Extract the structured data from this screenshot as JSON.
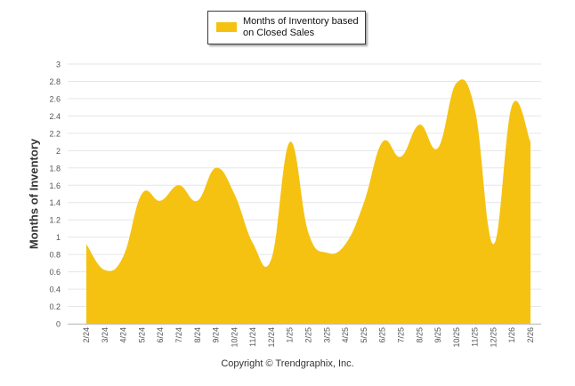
{
  "chart_data": {
    "type": "area",
    "title": "",
    "xlabel": "",
    "ylabel": "Months of Inventory",
    "ylim": [
      0,
      3
    ],
    "y_ticks": [
      "0",
      "0.2",
      "0.4",
      "0.6",
      "0.8",
      "1",
      "1.2",
      "1.4",
      "1.6",
      "1.8",
      "2",
      "2.2",
      "2.4",
      "2.6",
      "2.8",
      "3"
    ],
    "grid": true,
    "legend_position": "top-center",
    "categories": [
      "2/24",
      "3/24",
      "4/24",
      "5/24",
      "6/24",
      "7/24",
      "8/24",
      "9/24",
      "10/24",
      "11/24",
      "12/24",
      "1/25",
      "2/25",
      "3/25",
      "4/25",
      "5/25",
      "6/25",
      "7/25",
      "8/25",
      "9/25",
      "10/25",
      "11/25",
      "12/25",
      "1/26",
      "2/26"
    ],
    "series": [
      {
        "name": "Months of Inventory based on Closed Sales",
        "color": "#f5c211",
        "values": [
          0.92,
          0.62,
          0.78,
          1.5,
          1.42,
          1.6,
          1.42,
          1.8,
          1.5,
          0.93,
          0.75,
          2.1,
          1.05,
          0.82,
          0.92,
          1.4,
          2.1,
          1.93,
          2.3,
          2.03,
          2.78,
          2.47,
          0.92,
          2.52,
          2.1
        ]
      }
    ]
  },
  "legend": {
    "label": "Months of Inventory based on Closed Sales",
    "color": "#f5c211"
  },
  "copyright": "Copyright © Trendgraphix, Inc."
}
